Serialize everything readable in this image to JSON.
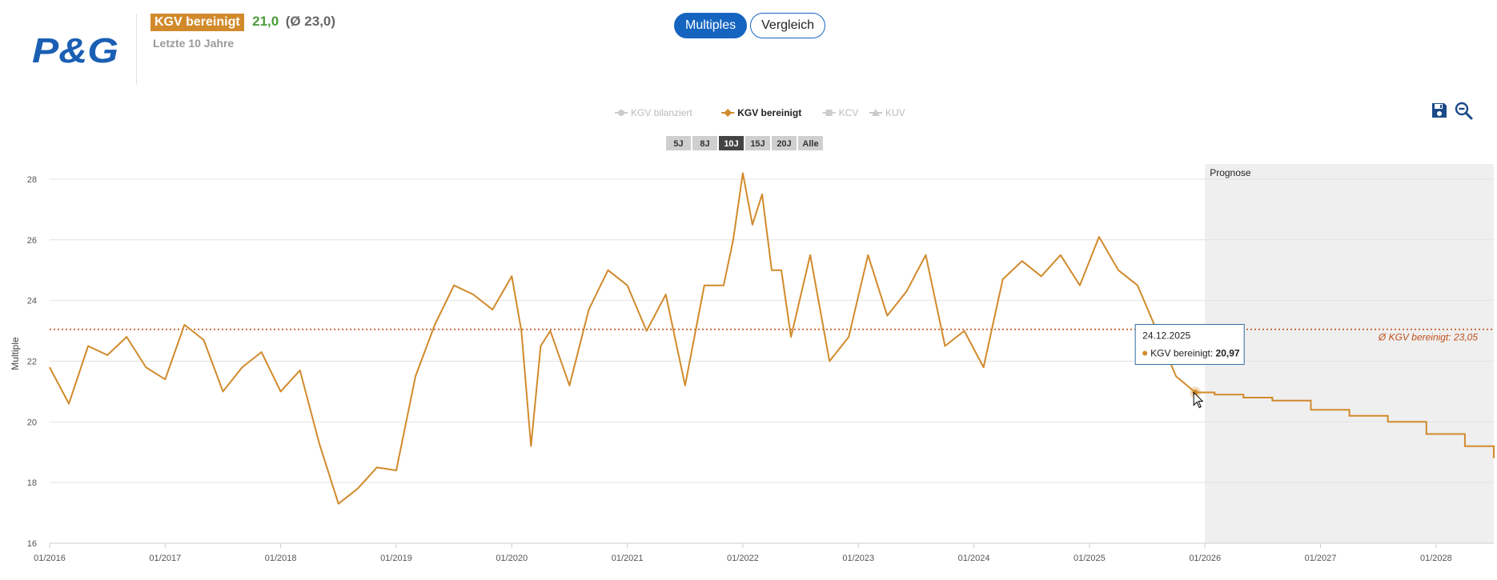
{
  "company": {
    "logo_text": "P&G"
  },
  "header": {
    "metric_label": "KGV bereinigt",
    "metric_value": "21,0",
    "metric_avg": "(Ø 23,0)",
    "period": "Letzte 10 Jahre"
  },
  "toggle": {
    "multiples": "Multiples",
    "vergleich": "Vergleich"
  },
  "tools": {
    "save_icon": "floppy-disk-icon",
    "zoom_out_icon": "magnifier-minus-icon"
  },
  "colors": {
    "series": "#d18a2b",
    "avg_line": "#c0501a",
    "accent": "#1565c0",
    "forecast_bg": "#efefef",
    "value_green": "#4a9d3a"
  },
  "legend": [
    {
      "label": "KGV bereinigt",
      "active": false,
      "marker": "circle",
      "display": "KGV bilanziert"
    },
    {
      "label": "KGV bereinigt",
      "active": true,
      "marker": "diamond",
      "display": "KGV bereinigt"
    },
    {
      "label": "KCV",
      "active": false,
      "marker": "square",
      "display": "KCV"
    },
    {
      "label": "KUV",
      "active": false,
      "marker": "triangle",
      "display": "KUV"
    }
  ],
  "ranges": [
    {
      "label": "5J",
      "active": false
    },
    {
      "label": "8J",
      "active": false
    },
    {
      "label": "10J",
      "active": true
    },
    {
      "label": "15J",
      "active": false
    },
    {
      "label": "20J",
      "active": false
    },
    {
      "label": "Alle",
      "active": false
    }
  ],
  "chart_data": {
    "type": "line",
    "ylabel": "Multiple",
    "ylim": [
      16,
      28.5
    ],
    "yticks": [
      16,
      18,
      20,
      22,
      24,
      26,
      28
    ],
    "xlim": [
      "2016-01",
      "2028-07"
    ],
    "xticks": [
      "01/2016",
      "01/2017",
      "01/2018",
      "01/2019",
      "01/2020",
      "01/2021",
      "01/2022",
      "01/2023",
      "01/2024",
      "01/2025",
      "01/2026",
      "01/2027",
      "01/2028"
    ],
    "grid": true,
    "series": [
      {
        "name": "KGV bereinigt",
        "x": [
          "2016-01",
          "2016-03",
          "2016-05",
          "2016-07",
          "2016-09",
          "2016-11",
          "2017-01",
          "2017-03",
          "2017-05",
          "2017-07",
          "2017-09",
          "2017-11",
          "2018-01",
          "2018-03",
          "2018-05",
          "2018-07",
          "2018-09",
          "2018-11",
          "2019-01",
          "2019-03",
          "2019-05",
          "2019-07",
          "2019-09",
          "2019-11",
          "2020-01",
          "2020-02",
          "2020-03",
          "2020-04",
          "2020-05",
          "2020-07",
          "2020-09",
          "2020-11",
          "2021-01",
          "2021-03",
          "2021-05",
          "2021-07",
          "2021-09",
          "2021-11",
          "2021-12",
          "2022-01",
          "2022-02",
          "2022-03",
          "2022-04",
          "2022-05",
          "2022-06",
          "2022-08",
          "2022-10",
          "2022-12",
          "2023-02",
          "2023-04",
          "2023-06",
          "2023-08",
          "2023-10",
          "2023-12",
          "2024-02",
          "2024-04",
          "2024-06",
          "2024-08",
          "2024-10",
          "2024-12",
          "2025-02",
          "2025-04",
          "2025-06",
          "2025-08",
          "2025-10",
          "2025-12"
        ],
        "values": [
          21.8,
          20.6,
          22.5,
          22.2,
          22.8,
          21.8,
          21.4,
          23.2,
          22.7,
          21.0,
          21.8,
          22.3,
          21.0,
          21.7,
          19.3,
          17.3,
          17.8,
          18.5,
          18.4,
          21.5,
          23.2,
          24.5,
          24.2,
          23.7,
          24.8,
          23.0,
          19.2,
          22.5,
          23.0,
          21.2,
          23.7,
          25.0,
          24.5,
          23.0,
          24.2,
          21.2,
          24.5,
          24.5,
          26.0,
          28.2,
          26.5,
          27.5,
          25.0,
          25.0,
          22.8,
          25.5,
          22.0,
          22.8,
          25.5,
          23.5,
          24.3,
          25.5,
          22.5,
          23.0,
          21.8,
          24.7,
          25.3,
          24.8,
          25.5,
          24.5,
          26.1,
          25.0,
          24.5,
          23.0,
          21.5,
          20.97
        ]
      },
      {
        "name": "Prognose",
        "x": [
          "2025-12",
          "2026-02",
          "2026-05",
          "2026-08",
          "2026-12",
          "2027-04",
          "2027-08",
          "2027-12",
          "2028-04",
          "2028-07"
        ],
        "values": [
          20.97,
          20.9,
          20.8,
          20.7,
          20.4,
          20.2,
          20.0,
          19.6,
          19.2,
          18.8
        ]
      }
    ],
    "average": {
      "value": 23.05,
      "label": "Ø KGV bereinigt: 23,05"
    },
    "forecast_start": "2026-01",
    "forecast_label": "Prognose",
    "tooltip": {
      "date": "24.12.2025",
      "series": "KGV bereinigt",
      "value": "20,97",
      "label": "KGV bereinigt:"
    }
  }
}
